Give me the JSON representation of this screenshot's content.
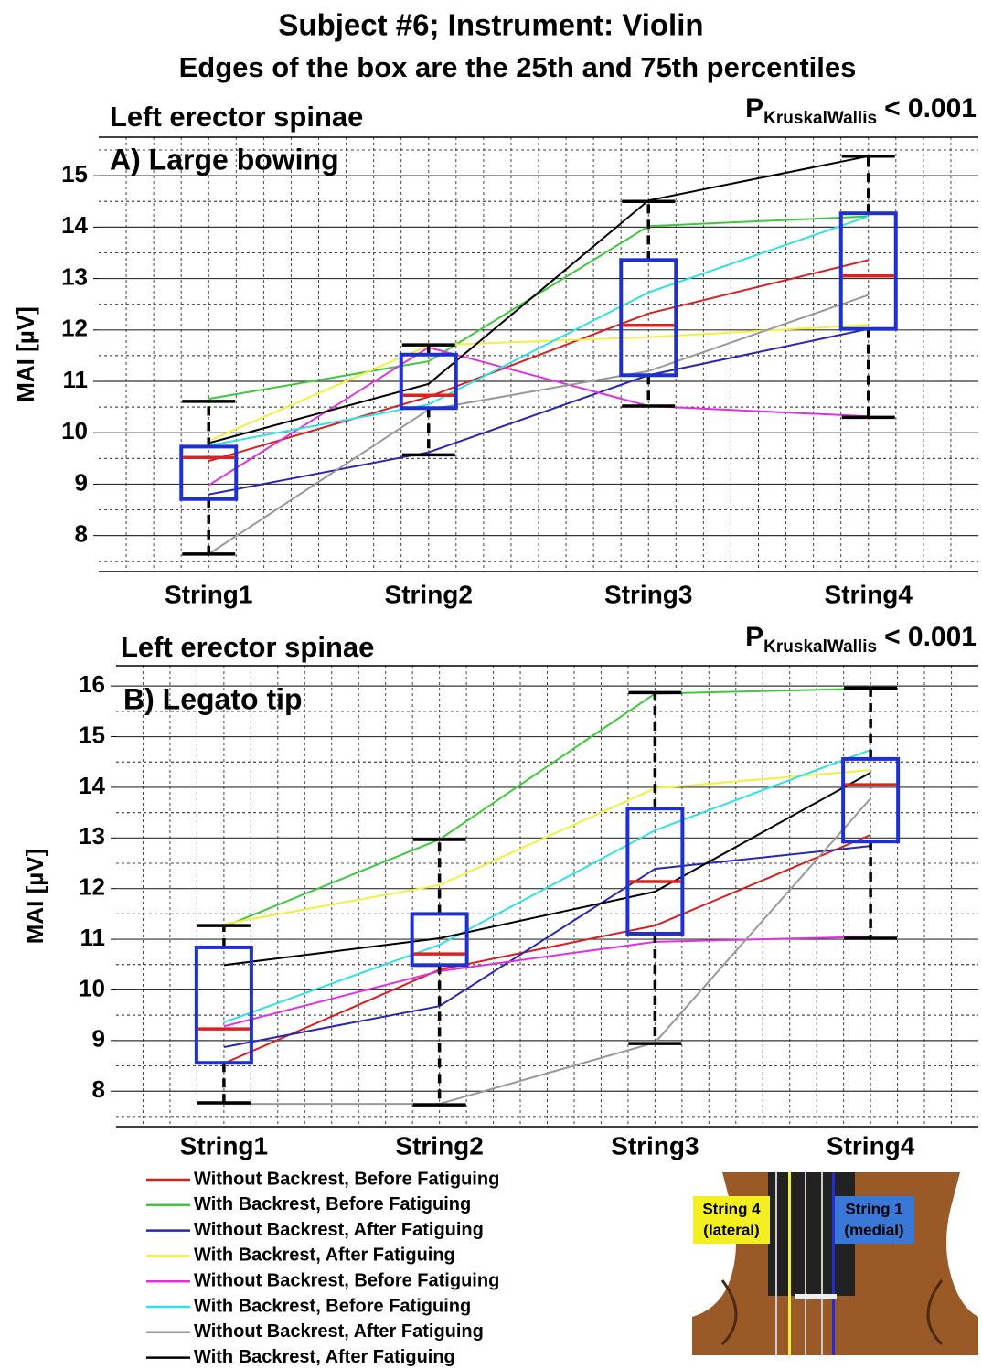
{
  "title": "Subject #6; Instrument: Violin",
  "subtitle": "Edges of the box are the 25th and 75th percentiles",
  "inset": {
    "labels": [
      [
        "String 4",
        "(lateral)"
      ],
      [
        "String 1",
        "(medial)"
      ]
    ]
  },
  "chart_data": [
    {
      "type": "box",
      "muscle": "Left erector spinae",
      "panel": "A) Large bowing",
      "annotation": {
        "symbol": "P",
        "subscript": "KruskalWallis",
        "text": "< 0.001"
      },
      "ylabel": "MAI [µV]",
      "categories": [
        "String1",
        "String2",
        "String3",
        "String4"
      ],
      "ylim": [
        7.3,
        15.75
      ],
      "yticks": [
        8,
        9,
        10,
        11,
        12,
        13,
        14,
        15
      ],
      "grid": true,
      "box_color": "#2030d0",
      "median_color": "#e02020",
      "boxes": [
        {
          "q1": 8.71,
          "median": 9.52,
          "q3": 9.73,
          "whislo": 7.64,
          "whishi": 10.61
        },
        {
          "q1": 10.48,
          "median": 10.73,
          "q3": 11.52,
          "whislo": 9.57,
          "whishi": 11.71
        },
        {
          "q1": 11.12,
          "median": 12.09,
          "q3": 13.36,
          "whislo": 10.52,
          "whishi": 14.5
        },
        {
          "q1": 12.02,
          "median": 13.05,
          "q3": 14.27,
          "whislo": 10.3,
          "whishi": 15.38
        }
      ],
      "series": [
        {
          "name": "Without Backrest, Before Fatiguing",
          "color": "#d82020",
          "values": [
            9.45,
            10.7,
            12.32,
            13.36
          ]
        },
        {
          "name": "With Backrest, Before Fatiguing",
          "color": "#3ec83e",
          "values": [
            10.66,
            11.39,
            14.02,
            14.21
          ]
        },
        {
          "name": "Without Backrest, After Fatiguing",
          "color": "#2828b0",
          "values": [
            8.8,
            9.62,
            11.12,
            12.02
          ]
        },
        {
          "name": "With Backrest, After Fatiguing",
          "color": "#f2f040",
          "values": [
            9.84,
            11.7,
            11.86,
            12.1
          ]
        },
        {
          "name": "Without Backrest, Before Fatiguing",
          "color": "#e030e0",
          "values": [
            8.98,
            11.66,
            10.52,
            10.32
          ]
        },
        {
          "name": "With Backrest, Before Fatiguing",
          "color": "#30e0e8",
          "values": [
            9.75,
            10.55,
            12.73,
            14.21
          ]
        },
        {
          "name": "Without Backrest, After Fatiguing",
          "color": "#999999",
          "values": [
            7.64,
            10.45,
            11.2,
            12.68
          ]
        },
        {
          "name": "With Backrest, After Fatiguing",
          "color": "#000000",
          "values": [
            9.8,
            10.95,
            14.52,
            15.38
          ]
        }
      ]
    },
    {
      "type": "box",
      "muscle": "Left erector spinae",
      "panel": "B) Legato tip",
      "annotation": {
        "symbol": "P",
        "subscript": "KruskalWallis",
        "text": "< 0.001"
      },
      "ylabel": "MAI [µV]",
      "categories": [
        "String1",
        "String2",
        "String3",
        "String4"
      ],
      "ylim": [
        7.3,
        16.4
      ],
      "yticks": [
        8,
        9,
        10,
        11,
        12,
        13,
        14,
        15,
        16
      ],
      "grid": true,
      "box_color": "#2030d0",
      "median_color": "#e02020",
      "boxes": [
        {
          "q1": 8.56,
          "median": 9.23,
          "q3": 10.84,
          "whislo": 7.77,
          "whishi": 11.27
        },
        {
          "q1": 10.49,
          "median": 10.71,
          "q3": 11.5,
          "whislo": 7.73,
          "whishi": 12.97
        },
        {
          "q1": 11.11,
          "median": 12.14,
          "q3": 13.58,
          "whislo": 8.94,
          "whishi": 15.87
        },
        {
          "q1": 12.93,
          "median": 14.05,
          "q3": 14.56,
          "whislo": 11.02,
          "whishi": 15.96
        }
      ],
      "series": [
        {
          "color": "#d82020",
          "values": [
            8.55,
            10.4,
            11.27,
            13.06
          ]
        },
        {
          "color": "#3ec83e",
          "values": [
            11.25,
            12.97,
            15.85,
            15.95
          ]
        },
        {
          "color": "#2828b0",
          "values": [
            8.87,
            9.68,
            12.39,
            12.84
          ]
        },
        {
          "color": "#f2f040",
          "values": [
            11.3,
            12.07,
            13.98,
            14.34
          ]
        },
        {
          "color": "#e030e0",
          "values": [
            9.28,
            10.37,
            10.95,
            11.05
          ]
        },
        {
          "color": "#30e0e8",
          "values": [
            9.36,
            10.89,
            13.15,
            14.74
          ]
        },
        {
          "color": "#999999",
          "values": [
            7.75,
            7.75,
            8.96,
            13.78
          ]
        },
        {
          "color": "#000000",
          "values": [
            10.49,
            11.02,
            11.94,
            14.29
          ]
        }
      ]
    }
  ]
}
